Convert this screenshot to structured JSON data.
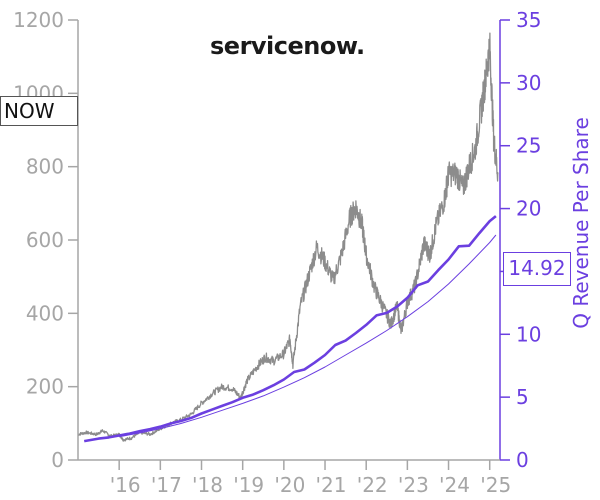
{
  "ticker": "NOW",
  "logo_text": "servicenow.",
  "latest_value_label": "14.92",
  "colors": {
    "price": "#8c8c8c",
    "revenue": "#6b3fe0",
    "left_axis": "#a6a6a6",
    "right_axis": "#6b3fe0"
  },
  "chart_data": {
    "type": "line",
    "title": "",
    "xlabel": "",
    "ylabel_left": "",
    "ylabel_right": "Q Revenue Per Share",
    "y_left_ticks": [
      "0",
      "200",
      "400",
      "600",
      "800",
      "1000",
      "1200"
    ],
    "y_left_range": [
      0,
      1200
    ],
    "y_right_ticks": [
      "0",
      "5",
      "10",
      "15",
      "20",
      "25",
      "30",
      "35"
    ],
    "y_right_range": [
      0,
      35
    ],
    "x_range": [
      2015.0,
      2025.25
    ],
    "x_ticks": [
      "'16",
      "'17",
      "'18",
      "'19",
      "'20",
      "'21",
      "'22",
      "'23",
      "'24",
      "'25"
    ],
    "grid": false,
    "series": [
      {
        "name": "",
        "axis": "left",
        "x": [
          2015.0,
          2015.2,
          2015.45,
          2015.6,
          2015.8,
          2016.0,
          2016.1,
          2016.3,
          2016.5,
          2016.75,
          2017.0,
          2017.25,
          2017.5,
          2017.75,
          2018.0,
          2018.25,
          2018.5,
          2018.75,
          2018.95,
          2019.1,
          2019.35,
          2019.55,
          2019.75,
          2020.0,
          2020.15,
          2020.22,
          2020.4,
          2020.6,
          2020.8,
          2021.0,
          2021.2,
          2021.4,
          2021.6,
          2021.75,
          2021.9,
          2022.0,
          2022.2,
          2022.4,
          2022.6,
          2022.75,
          2022.85,
          2023.0,
          2023.2,
          2023.4,
          2023.55,
          2023.7,
          2023.9,
          2024.0,
          2024.2,
          2024.35,
          2024.5,
          2024.65,
          2024.8,
          2024.9,
          2025.0,
          2025.1,
          2025.2
        ],
        "y": [
          70,
          75,
          70,
          80,
          65,
          70,
          55,
          60,
          75,
          70,
          85,
          100,
          110,
          125,
          155,
          180,
          200,
          195,
          170,
          215,
          255,
          280,
          270,
          290,
          330,
          260,
          420,
          500,
          580,
          540,
          490,
          560,
          660,
          690,
          640,
          560,
          470,
          420,
          370,
          420,
          350,
          430,
          480,
          590,
          560,
          640,
          710,
          780,
          780,
          740,
          800,
          850,
          960,
          1040,
          1130,
          870,
          780
        ]
      },
      {
        "name": "",
        "axis": "right",
        "x": [
          2015.15,
          2015.5,
          2015.75,
          2016.0,
          2016.25,
          2016.5,
          2016.75,
          2017.0,
          2017.25,
          2017.5,
          2017.75,
          2018.0,
          2018.25,
          2018.5,
          2018.75,
          2019.0,
          2019.25,
          2019.5,
          2019.75,
          2020.0,
          2020.25,
          2020.5,
          2020.75,
          2021.0,
          2021.25,
          2021.5,
          2021.75,
          2022.0,
          2022.25,
          2022.5,
          2022.75,
          2023.0,
          2023.25,
          2023.5,
          2023.75,
          2024.0,
          2024.25,
          2024.5,
          2024.75,
          2025.0,
          2025.15
        ],
        "y": [
          1.5,
          1.7,
          1.8,
          1.95,
          2.1,
          2.3,
          2.45,
          2.65,
          2.9,
          3.1,
          3.35,
          3.7,
          4.0,
          4.3,
          4.6,
          4.95,
          5.2,
          5.55,
          5.95,
          6.4,
          7.0,
          7.2,
          7.75,
          8.35,
          9.15,
          9.5,
          10.1,
          10.75,
          11.5,
          11.7,
          12.2,
          12.9,
          13.9,
          14.2,
          15.1,
          15.95,
          17.0,
          17.05,
          18.05,
          19.0,
          19.4
        ]
      },
      {
        "name": "",
        "axis": "right",
        "x": [
          2016.0,
          2016.5,
          2017.0,
          2017.5,
          2018.0,
          2018.5,
          2019.0,
          2019.5,
          2020.0,
          2020.5,
          2021.0,
          2021.5,
          2022.0,
          2022.5,
          2023.0,
          2023.5,
          2024.0,
          2024.5,
          2025.0,
          2025.15
        ],
        "y": [
          1.85,
          2.15,
          2.5,
          2.9,
          3.4,
          3.95,
          4.5,
          5.1,
          5.8,
          6.55,
          7.4,
          8.35,
          9.3,
          10.3,
          11.4,
          12.6,
          14.0,
          15.6,
          17.3,
          17.9
        ]
      }
    ]
  }
}
